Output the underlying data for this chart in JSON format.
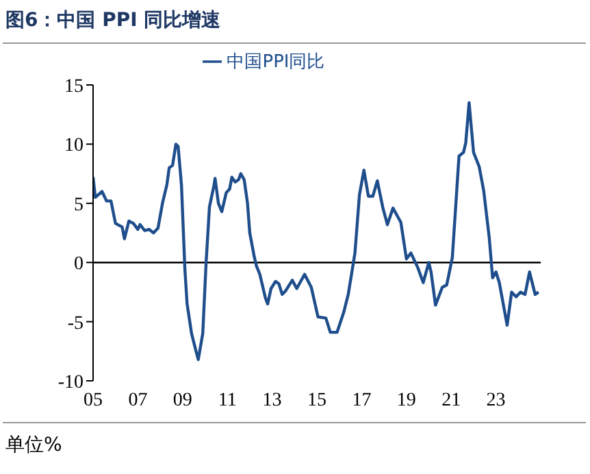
{
  "chart_data": {
    "type": "line",
    "title": "图6：中国 PPI 同比增速",
    "annotations": [
      "单位%"
    ],
    "x": [
      2005.0,
      2005.1,
      2005.4,
      2005.6,
      2005.8,
      2006.0,
      2006.3,
      2006.4,
      2006.6,
      2006.8,
      2007.0,
      2007.1,
      2007.3,
      2007.5,
      2007.7,
      2007.9,
      2008.1,
      2008.3,
      2008.4,
      2008.55,
      2008.7,
      2008.8,
      2008.95,
      2009.1,
      2009.2,
      2009.4,
      2009.6,
      2009.7,
      2009.9,
      2010.05,
      2010.2,
      2010.4,
      2010.45,
      2010.6,
      2010.75,
      2010.95,
      2011.1,
      2011.2,
      2011.35,
      2011.5,
      2011.6,
      2011.75,
      2011.9,
      2012.0,
      2012.2,
      2012.3,
      2012.45,
      2012.7,
      2012.8,
      2012.95,
      2013.15,
      2013.3,
      2013.45,
      2013.6,
      2013.9,
      2014.1,
      2014.45,
      2014.75,
      2015.05,
      2015.4,
      2015.6,
      2015.9,
      2016.2,
      2016.4,
      2016.7,
      2016.9,
      2017.1,
      2017.3,
      2017.5,
      2017.7,
      2017.95,
      2018.15,
      2018.4,
      2018.75,
      2019.0,
      2019.2,
      2019.5,
      2019.75,
      2020.0,
      2020.1,
      2020.3,
      2020.6,
      2020.8,
      2021.05,
      2021.35,
      2021.55,
      2021.65,
      2021.8,
      2022.0,
      2022.25,
      2022.45,
      2022.7,
      2022.85,
      2023.0,
      2023.15,
      2023.5,
      2023.7,
      2023.9,
      2024.1,
      2024.3,
      2024.5,
      2024.75,
      2024.9
    ],
    "series": [
      {
        "name": "中国PPI同比",
        "color": "#1f4e8c",
        "values": [
          7.2,
          5.5,
          6.0,
          5.2,
          5.2,
          3.3,
          3.0,
          2.0,
          3.5,
          3.3,
          2.8,
          3.2,
          2.7,
          2.8,
          2.5,
          2.9,
          5.0,
          6.6,
          8.0,
          8.2,
          10.0,
          9.8,
          6.5,
          -0.5,
          -3.5,
          -6.0,
          -7.5,
          -8.2,
          -6.0,
          0,
          4.7,
          6.5,
          7.1,
          5.0,
          4.3,
          5.9,
          6.2,
          7.2,
          6.8,
          7.0,
          7.5,
          7.0,
          5.0,
          2.5,
          0.5,
          -0.3,
          -1.0,
          -3.0,
          -3.5,
          -2.2,
          -1.6,
          -1.8,
          -2.7,
          -2.4,
          -1.5,
          -2.2,
          -1.0,
          -2.1,
          -4.6,
          -4.7,
          -5.9,
          -5.9,
          -4.2,
          -2.7,
          0.8,
          5.7,
          7.8,
          5.6,
          5.6,
          6.9,
          4.6,
          3.2,
          4.6,
          3.4,
          0.3,
          0.8,
          -0.4,
          -1.7,
          0,
          -0.8,
          -3.6,
          -2.1,
          -1.9,
          0.4,
          9.0,
          9.3,
          10.1,
          13.5,
          9.3,
          8.1,
          6.1,
          2.1,
          -1.3,
          -0.8,
          -1.7,
          -5.3,
          -2.5,
          -2.9,
          -2.5,
          -2.7,
          -0.8,
          -2.7,
          -2.5
        ]
      }
    ],
    "xlim": [
      2005,
      2025
    ],
    "xticks": [
      {
        "value": 2005,
        "label": "05"
      },
      {
        "value": 2007,
        "label": "07"
      },
      {
        "value": 2009,
        "label": "09"
      },
      {
        "value": 2011,
        "label": "11"
      },
      {
        "value": 2013,
        "label": "13"
      },
      {
        "value": 2015,
        "label": "15"
      },
      {
        "value": 2017,
        "label": "17"
      },
      {
        "value": 2019,
        "label": "19"
      },
      {
        "value": 2021,
        "label": "21"
      },
      {
        "value": 2023,
        "label": "23"
      }
    ],
    "ylim": [
      -10,
      15
    ],
    "yticks": [
      -10,
      -5,
      0,
      5,
      10,
      15
    ],
    "ref_lines": [
      {
        "axis": "y",
        "value": 0,
        "color": "#000000"
      }
    ],
    "legend": "top",
    "grid": false,
    "marker": "none",
    "line_style": "solid"
  }
}
